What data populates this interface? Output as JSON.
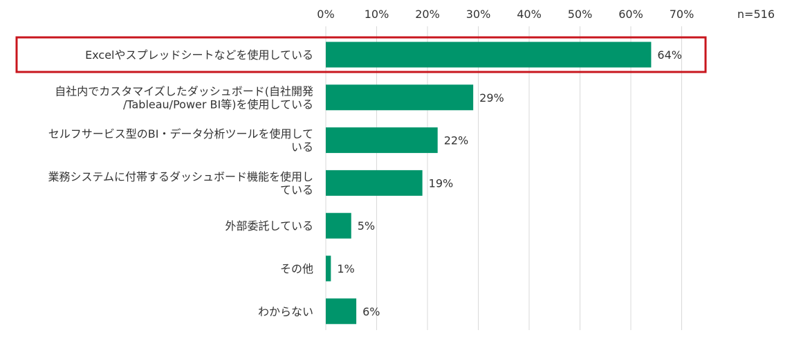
{
  "chart_data": {
    "type": "bar",
    "orientation": "horizontal",
    "sample_size_label": "n=516",
    "categories": [
      [
        "Excelやスプレッドシートなどを使用している"
      ],
      [
        "自社内でカスタマイズしたダッシュボード(自社開発",
        "/Tableau/Power BI等)を使用している"
      ],
      [
        "セルフサービス型のBI・データ分析ツールを使用して",
        "いる"
      ],
      [
        "業務システムに付帯するダッシュボード機能を使用し",
        "ている"
      ],
      [
        "外部委託している"
      ],
      [
        "その他"
      ],
      [
        "わからない"
      ]
    ],
    "values": [
      64,
      29,
      22,
      19,
      5,
      1,
      6
    ],
    "value_labels": [
      "64%",
      "29%",
      "22%",
      "19%",
      "5%",
      "1%",
      "6%"
    ],
    "x_ticks": [
      0,
      10,
      20,
      30,
      40,
      50,
      60,
      70
    ],
    "x_tick_labels": [
      "0%",
      "10%",
      "20%",
      "30%",
      "40%",
      "50%",
      "60%",
      "70%"
    ],
    "xlim": [
      0,
      70
    ],
    "grid": true,
    "highlight_index": 0,
    "colors": {
      "bar": "#00956b",
      "highlight_border": "#c8161d"
    },
    "title": "",
    "xlabel": "",
    "ylabel": ""
  }
}
